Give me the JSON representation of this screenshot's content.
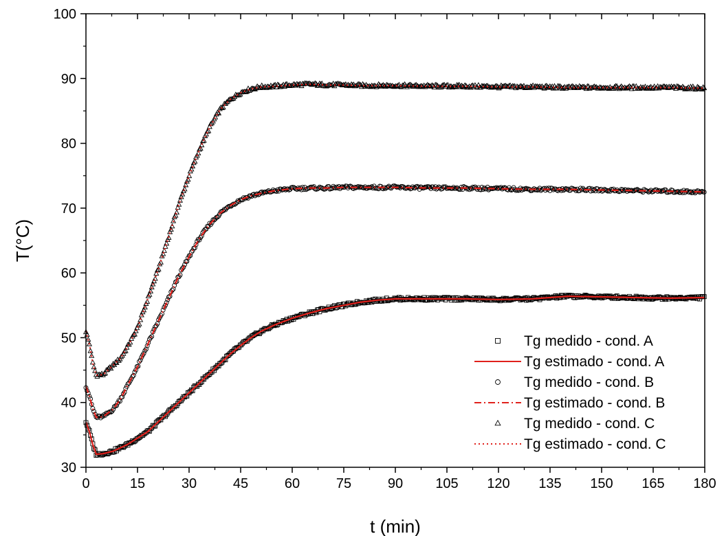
{
  "chart_data": {
    "type": "line",
    "xlabel": "t (min)",
    "ylabel": "T(°C)",
    "xlim": [
      0,
      180
    ],
    "ylim": [
      30,
      100
    ],
    "xticks": [
      "0",
      "15",
      "30",
      "45",
      "60",
      "75",
      "90",
      "105",
      "120",
      "135",
      "150",
      "165",
      "180"
    ],
    "yticks": [
      "30",
      "40",
      "50",
      "60",
      "70",
      "80",
      "90",
      "100"
    ],
    "grid": false,
    "legend_position": "bottom-right",
    "legend": [
      {
        "label": "Tg medido - cond. A",
        "style": "square-marker",
        "color": "#000000"
      },
      {
        "label": "Tg estimado - cond. A",
        "style": "solid-line",
        "color": "#e0201b"
      },
      {
        "label": "Tg medido - cond. B",
        "style": "circle-marker",
        "color": "#000000"
      },
      {
        "label": "Tg estimado - cond. B",
        "style": "dash-dot-line",
        "color": "#e0201b"
      },
      {
        "label": "Tg medido - cond. C",
        "style": "triangle-marker",
        "color": "#000000"
      },
      {
        "label": "Tg estimado - cond. C",
        "style": "dotted-line",
        "color": "#e0201b"
      }
    ],
    "series": [
      {
        "name": "Tg medido - cond. C",
        "x": [
          0,
          1,
          2,
          3,
          5,
          8,
          10,
          12,
          15,
          18,
          21,
          24,
          27,
          30,
          33,
          36,
          39,
          42,
          45,
          48,
          51,
          55,
          60,
          65,
          70,
          75,
          80,
          90,
          100,
          110,
          120,
          130,
          140,
          150,
          160,
          170,
          180
        ],
        "y": [
          51,
          49,
          46,
          44.2,
          44.3,
          45.8,
          46.8,
          48.5,
          51.5,
          56,
          60.5,
          65.5,
          70.5,
          75,
          79,
          82.5,
          85.2,
          86.8,
          87.8,
          88.4,
          88.7,
          88.8,
          89,
          89.1,
          89,
          89,
          88.9,
          88.9,
          88.8,
          88.8,
          88.7,
          88.7,
          88.6,
          88.6,
          88.6,
          88.6,
          88.5
        ]
      },
      {
        "name": "Tg medido - cond. B",
        "x": [
          0,
          1,
          2,
          3,
          5,
          8,
          10,
          12,
          15,
          18,
          21,
          24,
          27,
          30,
          33,
          36,
          39,
          42,
          45,
          48,
          51,
          55,
          60,
          65,
          70,
          75,
          80,
          90,
          100,
          110,
          120,
          130,
          140,
          150,
          160,
          170,
          180
        ],
        "y": [
          42.5,
          41,
          39,
          37.7,
          37.8,
          39,
          40.5,
          42.5,
          45.5,
          49,
          52.5,
          56,
          59.5,
          62.5,
          65.3,
          67.5,
          69.2,
          70.4,
          71.3,
          71.9,
          72.3,
          72.7,
          73,
          73.1,
          73.1,
          73.2,
          73.2,
          73.2,
          73.1,
          73.1,
          73,
          72.9,
          72.9,
          72.8,
          72.7,
          72.6,
          72.5
        ]
      },
      {
        "name": "Tg medido - cond. A",
        "x": [
          0,
          1,
          2,
          3,
          5,
          8,
          10,
          12,
          15,
          18,
          21,
          24,
          27,
          30,
          33,
          36,
          39,
          42,
          45,
          48,
          51,
          55,
          60,
          65,
          70,
          75,
          80,
          85,
          90,
          100,
          110,
          120,
          130,
          140,
          150,
          160,
          170,
          180
        ],
        "y": [
          37,
          35.5,
          33.5,
          32,
          32.1,
          32.5,
          33,
          33.5,
          34.5,
          35.5,
          37,
          38.5,
          40,
          41.5,
          43,
          44.5,
          46,
          47.5,
          48.8,
          50,
          51,
          52,
          53,
          53.8,
          54.5,
          55,
          55.5,
          55.8,
          56,
          56,
          56,
          55.9,
          56,
          56.4,
          56.3,
          56.2,
          56.1,
          56.2
        ]
      }
    ]
  }
}
